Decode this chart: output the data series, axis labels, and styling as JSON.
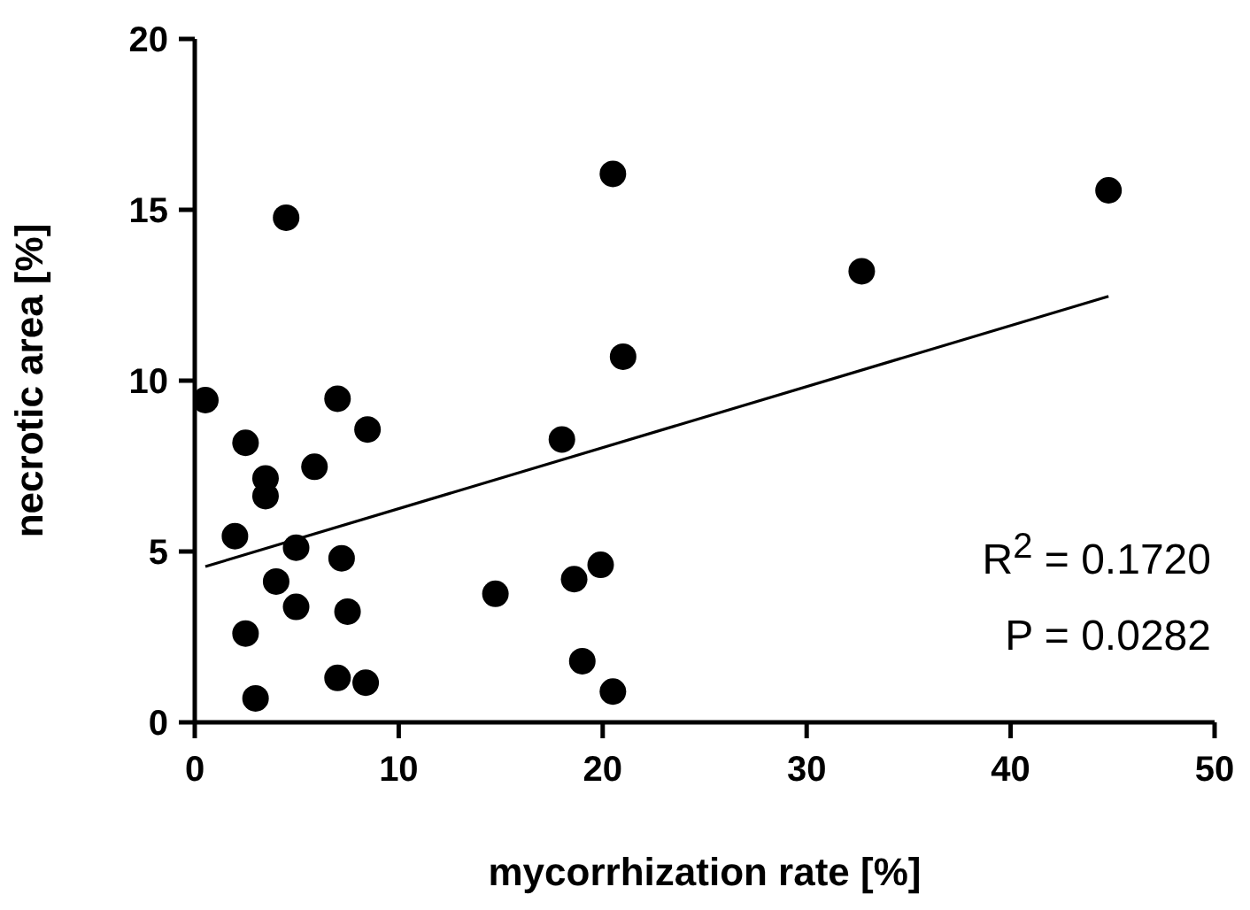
{
  "chart_data": {
    "type": "scatter",
    "xlabel": "mycorrhization rate [%]",
    "ylabel": "necrotic area [%]",
    "xlim": [
      0,
      50
    ],
    "xticks": [
      0,
      10,
      20,
      30,
      40,
      50
    ],
    "ylim": [
      0,
      20
    ],
    "yticks": [
      0,
      5,
      10,
      15,
      20
    ],
    "marker": "circle",
    "series": [
      {
        "color": "#000000",
        "x": [
          4.48,
          20.5,
          21.0,
          0.52,
          7.0,
          8.47,
          2.49,
          18.0,
          32.7,
          44.8,
          5.87,
          3.47,
          3.47,
          1.97,
          4.97,
          7.2,
          3.99,
          4.97,
          7.49,
          2.49,
          2.98,
          7.0,
          8.38,
          14.74,
          18.6,
          19.9,
          19.0,
          20.5
        ],
        "values": [
          14.77,
          16.05,
          10.7,
          9.43,
          9.47,
          8.57,
          8.18,
          8.28,
          13.2,
          15.57,
          7.48,
          7.14,
          6.62,
          5.45,
          5.11,
          4.8,
          4.12,
          3.38,
          3.24,
          2.6,
          0.7,
          1.3,
          1.16,
          3.76,
          4.19,
          4.61,
          1.79,
          0.9
        ]
      },
      {
        "type": "line",
        "color": "#000000",
        "x": [
          0.52,
          44.8
        ],
        "values": [
          4.56,
          12.47
        ],
        "marker": "none"
      }
    ],
    "annotations": [
      "R$^{2}$ = 0.1720",
      "P = 0.0282"
    ]
  }
}
